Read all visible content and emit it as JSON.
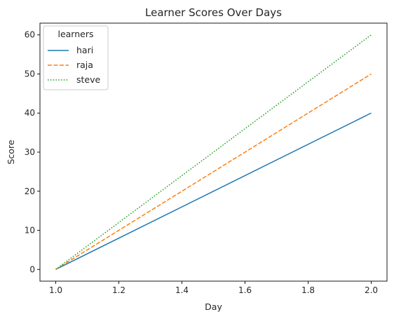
{
  "chart_data": {
    "type": "line",
    "title": "Learner Scores Over Days",
    "xlabel": "Day",
    "ylabel": "Score",
    "x": [
      1.0,
      2.0
    ],
    "xlim": [
      0.95,
      2.05
    ],
    "ylim": [
      -3,
      63
    ],
    "xticks": [
      1.0,
      1.2,
      1.4,
      1.6,
      1.8,
      2.0
    ],
    "xtick_labels": [
      "1.0",
      "1.2",
      "1.4",
      "1.6",
      "1.8",
      "2.0"
    ],
    "yticks": [
      0,
      10,
      20,
      30,
      40,
      50,
      60
    ],
    "ytick_labels": [
      "0",
      "10",
      "20",
      "30",
      "40",
      "50",
      "60"
    ],
    "grid": false,
    "legend": {
      "title": "learners",
      "placement": "top-left"
    },
    "series": [
      {
        "name": "hari",
        "values": [
          0,
          40
        ],
        "color": "#1f77b4",
        "style": "solid"
      },
      {
        "name": "raja",
        "values": [
          0,
          50
        ],
        "color": "#ff7f0e",
        "style": "dashed"
      },
      {
        "name": "steve",
        "values": [
          0,
          60
        ],
        "color": "#2ca02c",
        "style": "dotted"
      }
    ]
  }
}
